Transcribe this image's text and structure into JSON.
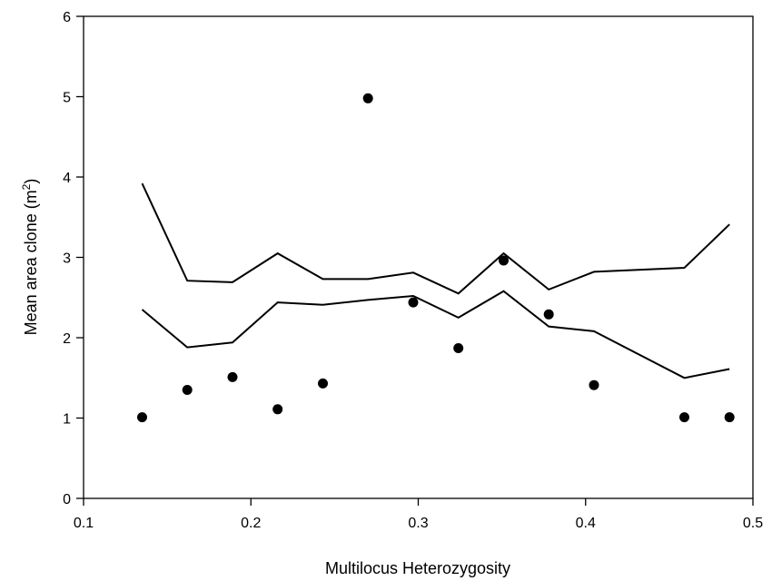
{
  "chart_data": {
    "type": "scatter",
    "title": "",
    "xlabel": "Multilocus Heterozygosity",
    "ylabel": {
      "prefix": "Mean area clone (m",
      "sup": "2",
      "suffix": ")"
    },
    "xlim": [
      0.1,
      0.5
    ],
    "ylim": [
      0,
      6
    ],
    "xticks": [
      "0.1",
      "0.2",
      "0.3",
      "0.4",
      "0.5"
    ],
    "yticks": [
      "0",
      "1",
      "2",
      "3",
      "4",
      "5",
      "6"
    ],
    "grid": false,
    "legend": "none",
    "series": [
      {
        "kind": "points",
        "x": [
          0.135,
          0.162,
          0.189,
          0.216,
          0.243,
          0.27,
          0.297,
          0.324,
          0.351,
          0.378,
          0.405,
          0.459,
          0.486
        ],
        "y": [
          1.01,
          1.35,
          1.51,
          1.11,
          1.43,
          4.98,
          2.44,
          1.87,
          2.96,
          2.29,
          1.41,
          1.01,
          1.01
        ]
      },
      {
        "kind": "line",
        "x": [
          0.135,
          0.162,
          0.189,
          0.216,
          0.243,
          0.27,
          0.297,
          0.324,
          0.351,
          0.378,
          0.405,
          0.459,
          0.486
        ],
        "y": [
          3.92,
          2.71,
          2.69,
          3.05,
          2.73,
          2.73,
          2.81,
          2.55,
          3.05,
          2.6,
          2.82,
          2.87,
          3.41
        ]
      },
      {
        "kind": "line",
        "x": [
          0.135,
          0.162,
          0.189,
          0.216,
          0.243,
          0.27,
          0.297,
          0.324,
          0.351,
          0.378,
          0.405,
          0.459,
          0.486
        ],
        "y": [
          2.35,
          1.88,
          1.94,
          2.44,
          2.41,
          2.47,
          2.52,
          2.25,
          2.58,
          2.14,
          2.08,
          1.5,
          1.61
        ]
      }
    ]
  }
}
